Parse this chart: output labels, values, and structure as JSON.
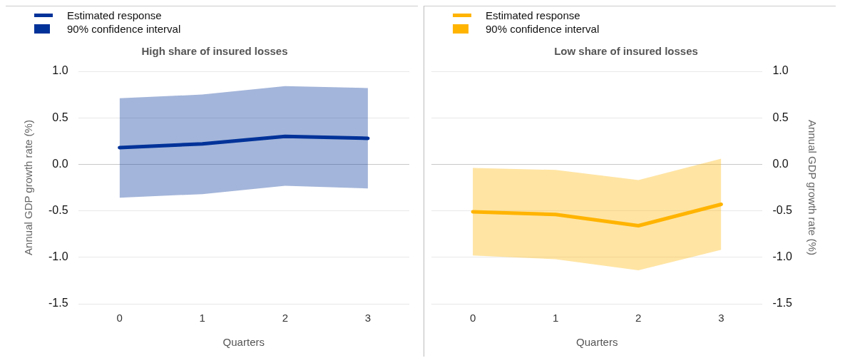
{
  "chart_data": [
    {
      "type": "line",
      "title": "High share of insured losses",
      "xlabel": "Quarters",
      "ylabel": "Annual GDP growth rate (%)",
      "categories": [
        "0",
        "1",
        "2",
        "3"
      ],
      "ylim": [
        -1.5,
        1.0
      ],
      "yticks": [
        {
          "value": -1.5,
          "label": "-1.5"
        },
        {
          "value": -1,
          "label": "-1.0"
        },
        {
          "value": -0.5,
          "label": "-0.5"
        },
        {
          "value": 0,
          "label": "0.0"
        },
        {
          "value": 0.5,
          "label": "0.5"
        },
        {
          "value": 1,
          "label": "1.0"
        }
      ],
      "grid": "y",
      "legend": "top left",
      "annotations": [
        "90% confidence interval"
      ],
      "series": [
        {
          "name": "Estimated response",
          "color": "#003299",
          "values": [
            0.18,
            0.22,
            0.3,
            0.28
          ],
          "lower": [
            -0.36,
            -0.32,
            -0.23,
            -0.26
          ],
          "upper": [
            0.71,
            0.75,
            0.84,
            0.82
          ]
        }
      ]
    },
    {
      "type": "line",
      "title": "Low share of insured losses",
      "xlabel": "Quarters",
      "y2label": "Annual GDP growth rate (%)",
      "categories": [
        "0",
        "1",
        "2",
        "3"
      ],
      "y2lim": [
        -1.5,
        1.0
      ],
      "y2ticks": [
        {
          "value": -1.5,
          "label": "-1.5"
        },
        {
          "value": -1,
          "label": "-1.0"
        },
        {
          "value": -0.5,
          "label": "-0.5"
        },
        {
          "value": 0,
          "label": "0.0"
        },
        {
          "value": 0.5,
          "label": "0.5"
        },
        {
          "value": 1,
          "label": "1.0"
        }
      ],
      "grid": "y",
      "legend": "top left",
      "annotations": [
        "90% confidence interval"
      ],
      "series": [
        {
          "name": "Estimated response",
          "axis": "y2",
          "color": "#ffb400",
          "values": [
            -0.51,
            -0.54,
            -0.66,
            -0.43
          ],
          "lower": [
            -0.98,
            -1.02,
            -1.14,
            -0.92
          ],
          "upper": [
            -0.04,
            -0.06,
            -0.17,
            0.06
          ]
        }
      ]
    }
  ]
}
